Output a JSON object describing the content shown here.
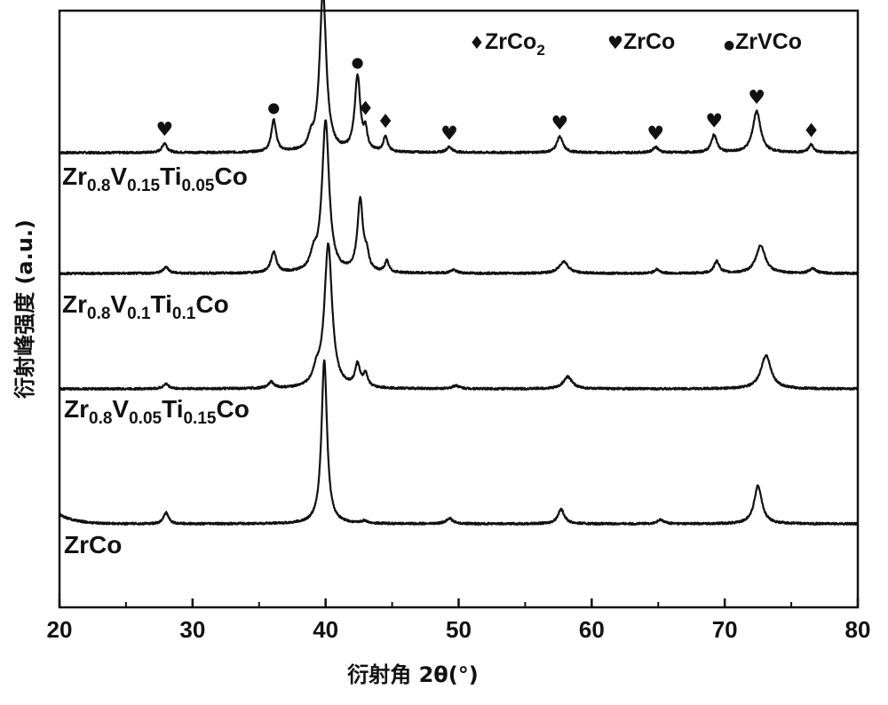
{
  "chart_data": {
    "type": "line",
    "xlabel": "衍射角 2θ(°)",
    "ylabel": "衍射峰强度 (a.u.)",
    "xlim": [
      20,
      80
    ],
    "xticks": [
      "20",
      "30",
      "40",
      "50",
      "60",
      "70",
      "80"
    ],
    "yticks": [],
    "grid": false,
    "legend": {
      "placement": "top-right",
      "entries": [
        {
          "marker": "♦",
          "name_main": "ZrCo",
          "name_sub": "2",
          "phase": "ZrCo2"
        },
        {
          "marker": "♥",
          "name_main": "ZrCo",
          "name_sub": "",
          "phase": "ZrCo"
        },
        {
          "marker": "●",
          "name_main": "ZrVCo",
          "name_sub": "",
          "phase": "ZrVCo"
        }
      ]
    },
    "series": [
      {
        "label_parts": [
          [
            "Zr",
            ""
          ],
          [
            "0.8",
            "sub"
          ],
          [
            "V",
            ""
          ],
          [
            "0.15",
            "sub"
          ],
          [
            "Ti",
            ""
          ],
          [
            "0.05",
            "sub"
          ],
          [
            "Co",
            ""
          ]
        ],
        "baseline": 0.3,
        "background": [],
        "peaks": [
          {
            "x": 27.9,
            "h": 0.12,
            "w": 0.22
          },
          {
            "x": 36.1,
            "h": 0.4,
            "w": 0.22
          },
          {
            "x": 38.9,
            "h": 0.12,
            "w": 0.22
          },
          {
            "x": 39.8,
            "h": 2.02,
            "w": 0.3
          },
          {
            "x": 42.4,
            "h": 0.94,
            "w": 0.25
          },
          {
            "x": 43.0,
            "h": 0.22,
            "w": 0.16
          },
          {
            "x": 44.5,
            "h": 0.2,
            "w": 0.18
          },
          {
            "x": 49.3,
            "h": 0.07,
            "w": 0.25
          },
          {
            "x": 57.6,
            "h": 0.2,
            "w": 0.28
          },
          {
            "x": 64.8,
            "h": 0.07,
            "w": 0.25
          },
          {
            "x": 69.2,
            "h": 0.22,
            "w": 0.25
          },
          {
            "x": 72.4,
            "h": 0.52,
            "w": 0.35
          },
          {
            "x": 76.5,
            "h": 0.1,
            "w": 0.22
          }
        ]
      },
      {
        "label_parts": [
          [
            "Zr",
            ""
          ],
          [
            "0.8",
            "sub"
          ],
          [
            "V",
            ""
          ],
          [
            "0.1",
            "sub"
          ],
          [
            "Ti",
            ""
          ],
          [
            "0.1",
            "sub"
          ],
          [
            "Co",
            ""
          ]
        ],
        "baseline": 0.3,
        "background": [],
        "peaks": [
          {
            "x": 28.0,
            "h": 0.08,
            "w": 0.25
          },
          {
            "x": 36.1,
            "h": 0.26,
            "w": 0.25
          },
          {
            "x": 39.1,
            "h": 0.18,
            "w": 0.28
          },
          {
            "x": 40.0,
            "h": 1.9,
            "w": 0.32
          },
          {
            "x": 42.6,
            "h": 0.9,
            "w": 0.25
          },
          {
            "x": 43.1,
            "h": 0.18,
            "w": 0.18
          },
          {
            "x": 44.6,
            "h": 0.14,
            "w": 0.18
          },
          {
            "x": 49.6,
            "h": 0.04,
            "w": 0.3
          },
          {
            "x": 57.9,
            "h": 0.15,
            "w": 0.4
          },
          {
            "x": 64.9,
            "h": 0.05,
            "w": 0.25
          },
          {
            "x": 69.4,
            "h": 0.15,
            "w": 0.25
          },
          {
            "x": 72.7,
            "h": 0.35,
            "w": 0.42
          },
          {
            "x": 76.6,
            "h": 0.06,
            "w": 0.3
          }
        ]
      },
      {
        "label_parts": [
          [
            "Zr",
            ""
          ],
          [
            "0.8",
            "sub"
          ],
          [
            "V",
            ""
          ],
          [
            "0.05",
            "sub"
          ],
          [
            "Ti",
            ""
          ],
          [
            "0.15",
            "sub"
          ],
          [
            "Co",
            ""
          ]
        ],
        "baseline": 0.3,
        "background": [],
        "peaks": [
          {
            "x": 28.0,
            "h": 0.06,
            "w": 0.25
          },
          {
            "x": 35.9,
            "h": 0.08,
            "w": 0.25
          },
          {
            "x": 39.3,
            "h": 0.16,
            "w": 0.3
          },
          {
            "x": 40.2,
            "h": 1.8,
            "w": 0.35
          },
          {
            "x": 42.4,
            "h": 0.28,
            "w": 0.22
          },
          {
            "x": 43.0,
            "h": 0.16,
            "w": 0.2
          },
          {
            "x": 49.8,
            "h": 0.04,
            "w": 0.3
          },
          {
            "x": 58.2,
            "h": 0.15,
            "w": 0.4
          },
          {
            "x": 73.1,
            "h": 0.42,
            "w": 0.45
          }
        ]
      },
      {
        "label_parts": [
          [
            "ZrCo",
            ""
          ]
        ],
        "baseline": 0.3,
        "background": [
          {
            "x0": 20,
            "amp": 0.12,
            "decay": 1.2
          }
        ],
        "peaks": [
          {
            "x": 28.0,
            "h": 0.14,
            "w": 0.22
          },
          {
            "x": 39.9,
            "h": 2.05,
            "w": 0.25
          },
          {
            "x": 42.9,
            "h": 0.03,
            "w": 0.25
          },
          {
            "x": 49.3,
            "h": 0.07,
            "w": 0.28
          },
          {
            "x": 57.7,
            "h": 0.18,
            "w": 0.3
          },
          {
            "x": 65.2,
            "h": 0.05,
            "w": 0.3
          },
          {
            "x": 72.5,
            "h": 0.48,
            "w": 0.35
          }
        ]
      }
    ],
    "annotations": [
      {
        "x": 27.9,
        "series": 0,
        "symbol": "♥"
      },
      {
        "x": 36.1,
        "series": 0,
        "symbol": "●"
      },
      {
        "x": 39.8,
        "series": 0,
        "symbol": "♥"
      },
      {
        "x": 42.4,
        "series": 0,
        "symbol": "●"
      },
      {
        "x": 43.0,
        "series": 0,
        "symbol": "♦"
      },
      {
        "x": 44.5,
        "series": 0,
        "symbol": "♦"
      },
      {
        "x": 49.3,
        "series": 0,
        "symbol": "♥"
      },
      {
        "x": 57.6,
        "series": 0,
        "symbol": "♥"
      },
      {
        "x": 64.8,
        "series": 0,
        "symbol": "♥"
      },
      {
        "x": 69.2,
        "series": 0,
        "symbol": "♥"
      },
      {
        "x": 72.4,
        "series": 0,
        "symbol": "♥"
      },
      {
        "x": 76.5,
        "series": 0,
        "symbol": "♦"
      }
    ]
  }
}
